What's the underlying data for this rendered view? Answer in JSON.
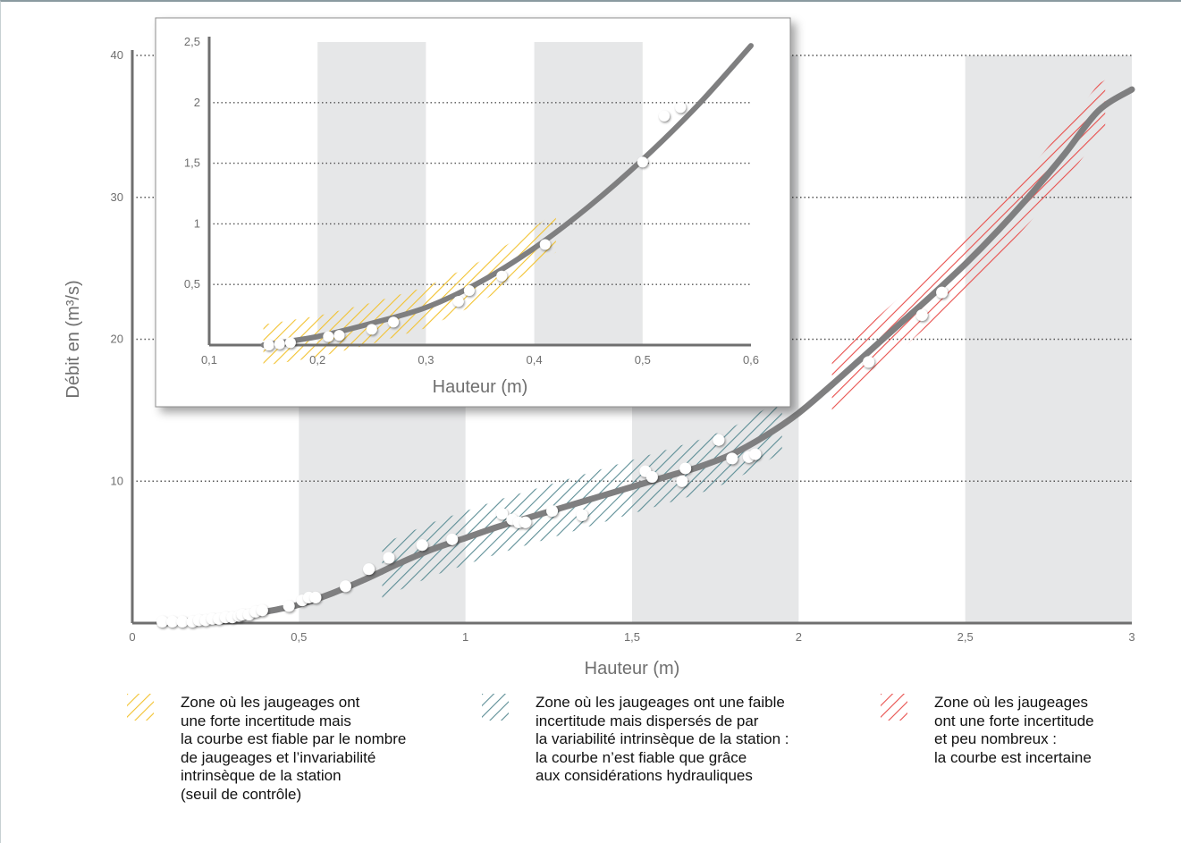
{
  "colors": {
    "grid_band": "#e6e7e8",
    "curve": "#7f7f80",
    "axis": "#6f6f6f",
    "zone_yellow": "#f2c230",
    "zone_teal": "#5d8e96",
    "zone_red": "#e8504d"
  },
  "chart_data": [
    {
      "type": "line",
      "xlabel": "Hauteur (m)",
      "ylabel": "Débit en (m³/s)",
      "xlim": [
        0,
        3
      ],
      "ylim": [
        0,
        40
      ],
      "x_ticks": [
        "0",
        "0,5",
        "1",
        "1,5",
        "2",
        "2,5",
        "3"
      ],
      "y_ticks": [
        "10",
        "20",
        "30",
        "40"
      ],
      "y_gridlines": [
        10,
        20,
        30,
        40
      ],
      "shaded_bands_x": [
        [
          0.5,
          1.0
        ],
        [
          1.5,
          2.0
        ],
        [
          2.5,
          3.0
        ]
      ],
      "curve": {
        "x": [
          0.1,
          0.2,
          0.3,
          0.4,
          0.5,
          0.6,
          0.7,
          0.8,
          0.9,
          1.0,
          1.1,
          1.2,
          1.3,
          1.4,
          1.5,
          1.6,
          1.7,
          1.8,
          1.9,
          2.0,
          2.1,
          2.2,
          2.3,
          2.4,
          2.5,
          2.6,
          2.7,
          2.8,
          2.9,
          3.0
        ],
        "y": [
          0.0,
          0.2,
          0.4,
          0.8,
          1.3,
          2.1,
          3.1,
          4.2,
          5.2,
          6.0,
          6.8,
          7.5,
          8.2,
          8.9,
          9.6,
          10.3,
          11.0,
          11.9,
          13.2,
          14.8,
          16.8,
          18.9,
          21.0,
          23.1,
          25.3,
          27.7,
          30.3,
          33.1,
          36.1,
          37.6
        ]
      },
      "points": {
        "x": [
          0.09,
          0.12,
          0.15,
          0.18,
          0.2,
          0.22,
          0.24,
          0.26,
          0.28,
          0.3,
          0.32,
          0.33,
          0.35,
          0.37,
          0.39,
          0.47,
          0.51,
          0.53,
          0.55,
          0.64,
          0.71,
          0.77,
          0.87,
          0.96,
          1.11,
          1.14,
          1.16,
          1.18,
          1.26,
          1.35,
          1.54,
          1.56,
          1.66,
          1.65,
          1.76,
          1.8,
          1.85,
          1.87,
          2.21,
          2.37,
          2.43
        ],
        "y": [
          0.1,
          0.1,
          0.1,
          0.1,
          0.2,
          0.2,
          0.3,
          0.3,
          0.4,
          0.4,
          0.5,
          0.6,
          0.6,
          0.8,
          0.9,
          1.2,
          1.6,
          1.8,
          1.8,
          2.6,
          3.8,
          4.6,
          5.5,
          5.9,
          7.7,
          7.3,
          7.1,
          7.1,
          7.9,
          7.6,
          10.7,
          10.3,
          10.9,
          10.0,
          12.9,
          11.6,
          11.7,
          11.9,
          18.4,
          21.7,
          23.3
        ]
      },
      "zones": [
        {
          "name": "teal",
          "x_from": 0.75,
          "x_to": 1.95
        },
        {
          "name": "red",
          "x_from": 2.1,
          "x_to": 2.92
        }
      ]
    },
    {
      "type": "line",
      "xlabel": "Hauteur (m)",
      "ylabel": "",
      "xlim": [
        0.1,
        0.6
      ],
      "ylim": [
        0,
        2.5
      ],
      "x_ticks": [
        "0,1",
        "0,2",
        "0,3",
        "0,4",
        "0,5",
        "0,6"
      ],
      "y_ticks": [
        "0,5",
        "1",
        "1,5",
        "2",
        "2,5"
      ],
      "y_gridlines": [
        0.5,
        1.0,
        1.5,
        2.0
      ],
      "shaded_bands_x": [
        [
          0.2,
          0.3
        ],
        [
          0.4,
          0.5
        ]
      ],
      "curve": {
        "x": [
          0.15,
          0.2,
          0.25,
          0.3,
          0.35,
          0.4,
          0.45,
          0.5,
          0.55,
          0.6
        ],
        "y": [
          0.0,
          0.07,
          0.18,
          0.31,
          0.52,
          0.8,
          1.14,
          1.53,
          1.97,
          2.47
        ]
      },
      "points": {
        "x": [
          0.155,
          0.165,
          0.175,
          0.21,
          0.22,
          0.25,
          0.27,
          0.33,
          0.34,
          0.37,
          0.41,
          0.5,
          0.52,
          0.535
        ],
        "y": [
          0.0,
          0.01,
          0.02,
          0.07,
          0.08,
          0.13,
          0.19,
          0.36,
          0.45,
          0.57,
          0.83,
          1.51,
          1.89,
          1.96
        ]
      },
      "zones": [
        {
          "name": "yellow",
          "x_from": 0.15,
          "x_to": 0.42
        }
      ]
    }
  ],
  "legend": [
    {
      "key": "yellow",
      "lines": [
        "Zone où les jaugeages ont",
        "une forte incertitude mais",
        "la courbe est fiable par le nombre",
        "de jaugeages et l’invariabilité",
        "intrinsèque de la station",
        "(seuil de contrôle)"
      ]
    },
    {
      "key": "teal",
      "lines": [
        "Zone où les jaugeages ont une faible",
        "incertitude mais dispersés de par",
        "la variabilité intrinsèque de la station :",
        "la courbe n’est fiable que grâce",
        "aux considérations hydrauliques"
      ]
    },
    {
      "key": "red",
      "lines": [
        "Zone où les jaugeages",
        "ont une forte incertitude",
        "et peu nombreux :",
        "la courbe est incertaine"
      ]
    }
  ]
}
